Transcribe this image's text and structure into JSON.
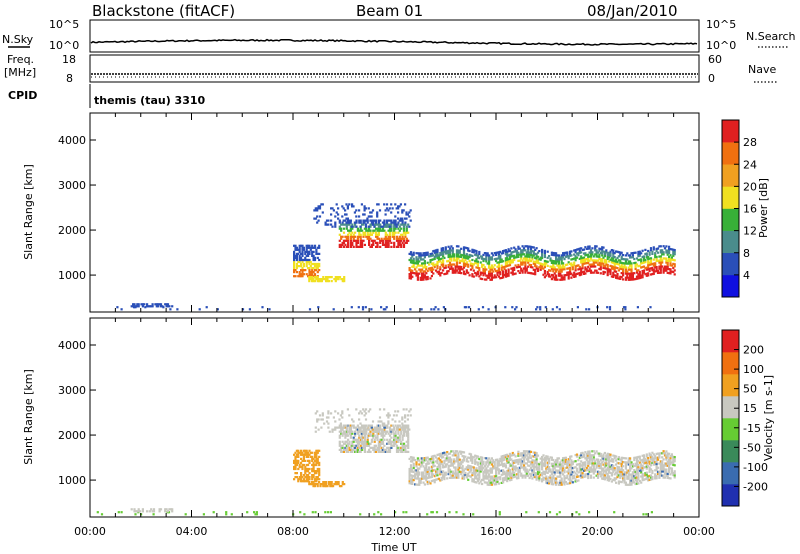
{
  "header": {
    "title_left": "Blackstone (fitACF)",
    "title_center": "Beam 01",
    "title_right": "08/Jan/2010"
  },
  "strip_top": {
    "left_label": "N.Sky",
    "left_ticks": [
      "10^5",
      "10^0"
    ],
    "right_ticks": [
      "10^5",
      "10^0"
    ],
    "right_label": "N.Search"
  },
  "strip_freq": {
    "left_label_1": "Freq.",
    "left_label_2": "[MHz]",
    "left_ticks": [
      "18",
      "8"
    ],
    "right_ticks": [
      "60",
      "0"
    ],
    "right_label": "Nave"
  },
  "cpid": {
    "label": "CPID",
    "value": "themis (tau) 3310"
  },
  "chart_data": [
    {
      "type": "heatmap",
      "name": "power",
      "ylabel": "Slant Range [km]",
      "ylim": [
        180,
        4600
      ],
      "y_ticks": [
        1000,
        2000,
        3000,
        4000
      ],
      "x_ticks": [
        "00:00",
        "04:00",
        "08:00",
        "12:00",
        "16:00",
        "20:00",
        "00:00"
      ],
      "colorbar": {
        "label": "Power [dB]",
        "ticks": [
          "4",
          "8",
          "12",
          "16",
          "20",
          "24",
          "28"
        ],
        "colors": [
          "#1010e0",
          "#2a4fb8",
          "#4a8c8c",
          "#38b038",
          "#f0e020",
          "#f0a020",
          "#f07010",
          "#e02020"
        ]
      }
    },
    {
      "type": "heatmap",
      "name": "velocity",
      "ylabel": "Slant Range [km]",
      "ylim": [
        180,
        4600
      ],
      "y_ticks": [
        1000,
        2000,
        3000,
        4000
      ],
      "x_ticks": [
        "00:00",
        "04:00",
        "08:00",
        "12:00",
        "16:00",
        "20:00",
        "00:00"
      ],
      "xlabel": "Time UT",
      "colorbar": {
        "label": "Velocity [m s-1]",
        "ticks": [
          "200",
          "100",
          "50",
          "15",
          "-15",
          "-50",
          "-100",
          "-200"
        ],
        "colors": [
          "#2030b0",
          "#3a6cb0",
          "#3a8a5a",
          "#66cc33",
          "#c8c8c0",
          "#f0a020",
          "#f07010",
          "#e02020"
        ]
      }
    }
  ]
}
